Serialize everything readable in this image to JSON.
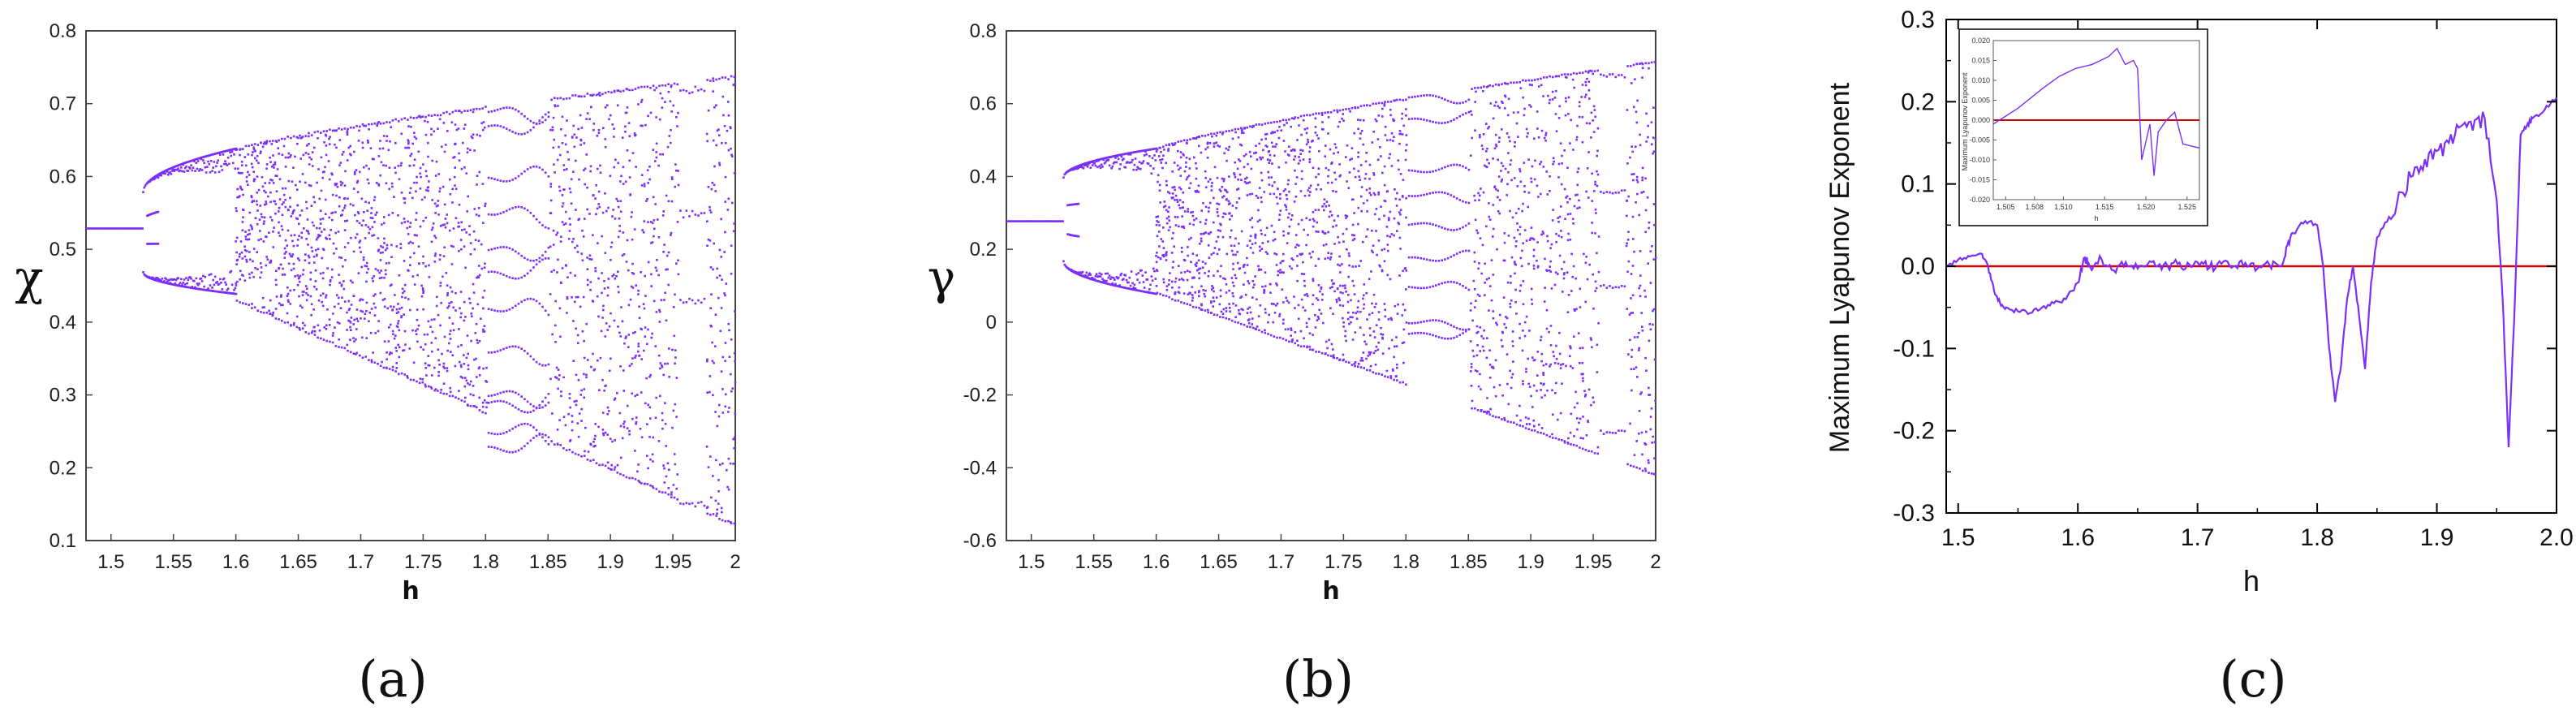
{
  "colors": {
    "series": "#7b2ff7",
    "reference_line": "#d40000",
    "axis": "#444444",
    "frame_c": "#000000"
  },
  "chart_data": [
    {
      "type": "scatter",
      "panel_label": "(a)",
      "xlabel": "h",
      "ylabel": "χ",
      "xlim": [
        1.48,
        2.0
      ],
      "ylim": [
        0.1,
        0.8
      ],
      "x_ticks": [
        "1.5",
        "1.55",
        "1.6",
        "1.65",
        "1.7",
        "1.75",
        "1.8",
        "1.85",
        "1.9",
        "1.95",
        "2"
      ],
      "y_ticks": [
        "0.1",
        "0.2",
        "0.3",
        "0.4",
        "0.5",
        "0.6",
        "0.7",
        "0.8"
      ],
      "grid": false,
      "description_points": {
        "fixed_point": {
          "h_range": [
            1.48,
            1.525
          ],
          "value": 0.53
        },
        "period_2_branches": {
          "h_range": [
            1.525,
            1.6
          ],
          "upper": [
            0.58,
            0.64
          ],
          "lower": [
            0.47,
            0.44
          ]
        },
        "chaotic_band": {
          "h_range": [
            1.6,
            2.0
          ],
          "min": [
            0.43,
            0.12
          ],
          "max": [
            0.64,
            0.74
          ]
        },
        "periodic_window": {
          "h_range": [
            1.8,
            1.85
          ],
          "levels": [
            0.69,
            0.67,
            0.6,
            0.55,
            0.5,
            0.47,
            0.42,
            0.36,
            0.29,
            0.23,
            0.25,
            0.3
          ]
        },
        "periodic_window_2": {
          "h_range": [
            1.955,
            1.975
          ],
          "levels": [
            0.72,
            0.55,
            0.43,
            0.15
          ]
        }
      }
    },
    {
      "type": "scatter",
      "panel_label": "(b)",
      "xlabel": "h",
      "ylabel": "γ",
      "xlim": [
        1.48,
        2.0
      ],
      "ylim": [
        -0.6,
        0.8
      ],
      "x_ticks": [
        "1.5",
        "1.55",
        "1.6",
        "1.65",
        "1.7",
        "1.75",
        "1.8",
        "1.85",
        "1.9",
        "1.95",
        "2"
      ],
      "y_ticks": [
        "-0.6",
        "-0.4",
        "-0.2",
        "0",
        "0.2",
        "0.4",
        "0.6",
        "0.8"
      ],
      "grid": false,
      "description_points": {
        "fixed_point": {
          "h_range": [
            1.48,
            1.525
          ],
          "value": 0.28
        },
        "period_2_branches": {
          "h_range": [
            1.525,
            1.6
          ],
          "upper": [
            0.4,
            0.48
          ],
          "lower": [
            0.17,
            0.08
          ]
        },
        "chaotic_band": {
          "h_range": [
            1.6,
            2.0
          ],
          "min": [
            0.08,
            -0.42
          ],
          "max": [
            0.48,
            0.72
          ]
        },
        "periodic_window": {
          "h_range": [
            1.8,
            1.85
          ],
          "levels": [
            0.62,
            0.56,
            0.42,
            0.35,
            0.27,
            0.18,
            0.1,
            0.0,
            -0.03
          ]
        },
        "periodic_window_2": {
          "h_range": [
            1.955,
            1.975
          ],
          "levels": [
            0.68,
            0.36,
            0.1,
            -0.3
          ]
        }
      }
    },
    {
      "type": "line",
      "panel_label": "(c)",
      "xlabel": "h",
      "ylabel": "Maximum  Lyapunov Exponent",
      "xlim": [
        1.49,
        2.0
      ],
      "ylim": [
        -0.3,
        0.3
      ],
      "x_ticks": [
        "1.5",
        "1.6",
        "1.7",
        "1.8",
        "1.9",
        "2.0"
      ],
      "y_ticks": [
        "-0.3",
        "-0.2",
        "-0.1",
        "0.0",
        "0.1",
        "0.2",
        "0.3"
      ],
      "grid": false,
      "reference_line_y": 0.0,
      "series": [
        {
          "x": [
            1.49,
            1.5,
            1.51,
            1.52,
            1.525,
            1.53,
            1.535,
            1.54,
            1.55,
            1.56,
            1.57,
            1.58,
            1.59,
            1.6,
            1.605,
            1.61,
            1.62,
            1.63,
            1.64,
            1.65,
            1.66,
            1.67,
            1.68,
            1.69,
            1.7,
            1.71,
            1.72,
            1.73,
            1.74,
            1.75,
            1.76,
            1.77,
            1.775,
            1.78,
            1.79,
            1.8,
            1.805,
            1.81,
            1.815,
            1.82,
            1.825,
            1.83,
            1.835,
            1.84,
            1.845,
            1.85,
            1.86,
            1.87,
            1.88,
            1.89,
            1.9,
            1.91,
            1.92,
            1.93,
            1.94,
            1.95,
            1.955,
            1.96,
            1.962,
            1.965,
            1.97,
            1.975,
            1.98,
            1.99,
            2.0
          ],
          "y": [
            0.0,
            0.008,
            0.012,
            0.015,
            0.0,
            -0.03,
            -0.045,
            -0.05,
            -0.055,
            -0.057,
            -0.05,
            -0.045,
            -0.04,
            -0.02,
            0.01,
            0.0,
            0.008,
            -0.005,
            0.005,
            -0.003,
            0.006,
            -0.004,
            0.004,
            -0.003,
            0.005,
            -0.002,
            0.003,
            0.0,
            0.004,
            -0.003,
            0.002,
            0.0,
            0.025,
            0.04,
            0.055,
            0.05,
            0.0,
            -0.1,
            -0.165,
            -0.12,
            -0.04,
            0.0,
            -0.06,
            -0.125,
            -0.02,
            0.035,
            0.06,
            0.09,
            0.11,
            0.13,
            0.14,
            0.15,
            0.17,
            0.165,
            0.18,
            0.08,
            -0.04,
            -0.22,
            -0.15,
            -0.05,
            0.16,
            0.17,
            0.18,
            0.19,
            0.205
          ]
        }
      ],
      "inset": {
        "xlim": [
          1.502,
          1.527
        ],
        "ylim": [
          -0.02,
          0.02
        ],
        "x_ticks": [
          "1.505",
          "1.508",
          "1.510",
          "1.515",
          "1.520",
          "1.525"
        ],
        "y_ticks": [
          "0.020",
          "0.015",
          "0.010",
          "0.005",
          "0.000",
          "-0.005",
          "-0.010",
          "-0.015",
          "-0.020"
        ],
        "xlabel": "h",
        "ylabel": "Maximum  Lyapunov Exponent",
        "x": [
          1.502,
          1.505,
          1.508,
          1.51,
          1.512,
          1.514,
          1.516,
          1.517,
          1.518,
          1.519,
          1.5195,
          1.52,
          1.521,
          1.5215,
          1.522,
          1.523,
          1.524,
          1.525,
          1.527
        ],
        "y": [
          -0.001,
          0.003,
          0.008,
          0.011,
          0.013,
          0.014,
          0.016,
          0.018,
          0.014,
          0.015,
          0.013,
          -0.01,
          -0.001,
          -0.014,
          -0.003,
          0.0,
          0.002,
          -0.006,
          -0.007
        ]
      }
    }
  ]
}
